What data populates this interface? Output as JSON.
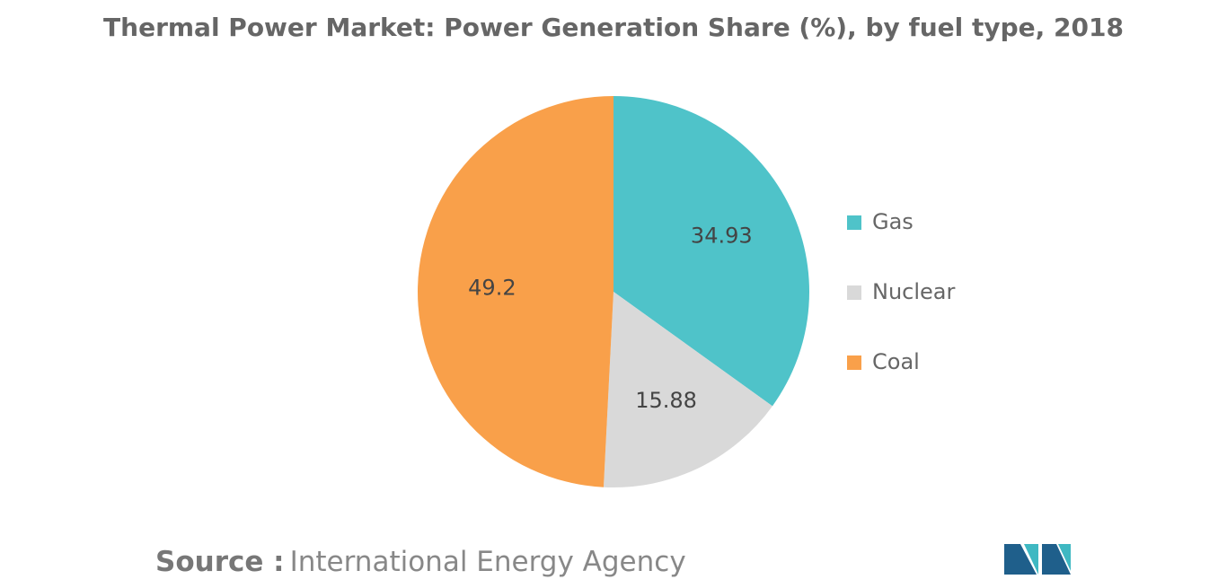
{
  "chart_data": {
    "type": "pie",
    "title": "Thermal Power Market: Power Generation Share (%), by fuel type, 2018",
    "categories": [
      "Gas",
      "Nuclear",
      "Coal"
    ],
    "values": [
      34.93,
      15.88,
      49.2
    ],
    "colors": [
      "#4fc3c9",
      "#d9d9d9",
      "#f9a04a"
    ],
    "legend": "right"
  },
  "source_label": "Source :",
  "source": "International Energy Agency"
}
